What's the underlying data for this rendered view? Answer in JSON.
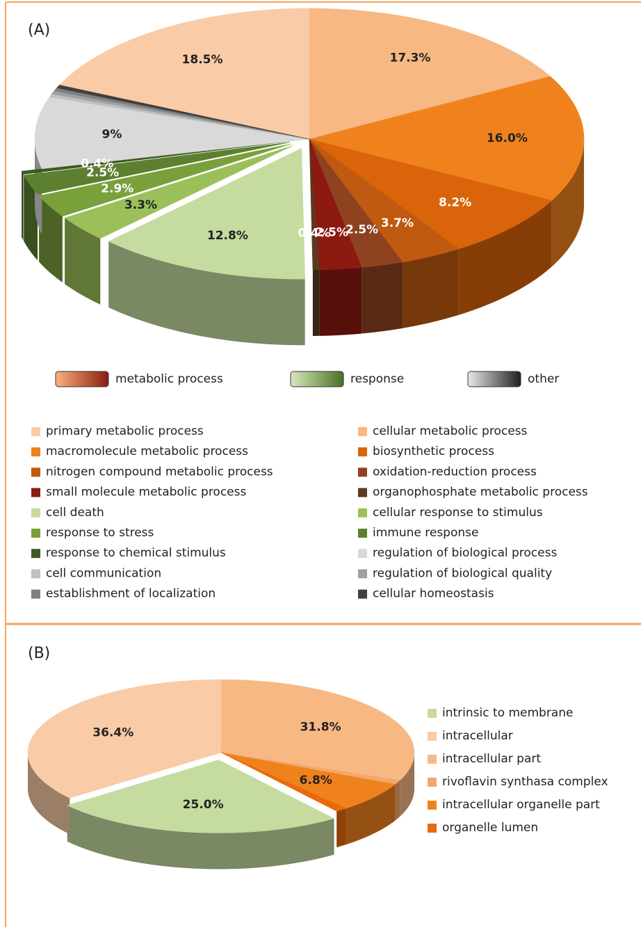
{
  "chart_data": [
    {
      "type": "pie",
      "title": "(A)",
      "groups": [
        {
          "name": "metabolic process",
          "colors": [
            "#f8b27a",
            "#8c1a10"
          ]
        },
        {
          "name": "response",
          "colors": [
            "#d8e8bc",
            "#4a7024"
          ]
        },
        {
          "name": "other",
          "colors": [
            "#e8e8e8",
            "#202020"
          ]
        }
      ],
      "categories": [
        "primary metabolic process",
        "cellular metabolic process",
        "macromolecule metabolic process",
        "biosynthetic process",
        "nitrogen compound metabolic process",
        "oxidation-reduction process",
        "small molecule metabolic process",
        "organophosphate metabolic process",
        "cell death",
        "cellular response to stimulus",
        "response to stress",
        "immune response",
        "response to chemical stimulus",
        "regulation of biological process",
        "cell communication",
        "regulation of biological quality",
        "establishment of localization",
        "cellular homeostasis"
      ],
      "values": [
        18.5,
        17.3,
        16.0,
        8.2,
        3.7,
        2.5,
        2.5,
        0.4,
        12.8,
        3.3,
        2.9,
        2.5,
        0.4,
        9,
        0.4,
        0.4,
        0.4,
        0.4
      ],
      "value_labels": [
        "18.5%",
        "17.3%",
        "16.0%",
        "8.2%",
        "3.7%",
        "2.5%",
        "2.5%",
        "0.4%",
        "12.8%",
        "3.3%",
        "2.9%",
        "2.5%",
        "0.4%",
        "9%",
        null,
        null,
        null,
        null
      ],
      "colors": [
        "#f9cba6",
        "#f7b884",
        "#f0821e",
        "#d9640a",
        "#c05a10",
        "#8f4220",
        "#8c1a10",
        "#5a3a20",
        "#c5dba0",
        "#9bc05a",
        "#7aa03c",
        "#5c8030",
        "#3d5a20",
        "#d9d9d9",
        "#c0c0c0",
        "#a0a0a0",
        "#808080",
        "#404040"
      ]
    },
    {
      "type": "pie",
      "title": "(B)",
      "categories": [
        "intrinsic to membrane",
        "intracellular",
        "intracellular part",
        "rivoflavin synthasa complex",
        "intracellular organelle part",
        "organelle lumen"
      ],
      "values": [
        25.0,
        36.4,
        31.8,
        1,
        6.8,
        1
      ],
      "value_labels": [
        "25.0%",
        "36.4%",
        "31.8%",
        null,
        "6.8%",
        null
      ],
      "colors": [
        "#c5dba0",
        "#f9cba6",
        "#f7b884",
        "#f5a66a",
        "#f0821e",
        "#e86a0a"
      ]
    }
  ]
}
